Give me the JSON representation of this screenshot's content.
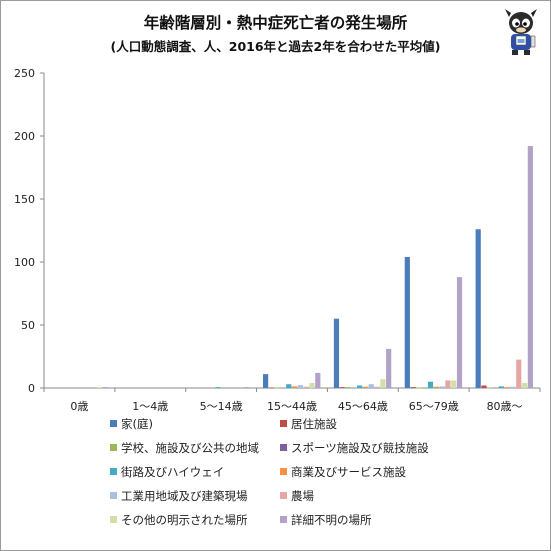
{
  "chart_data": {
    "type": "bar",
    "title": "年齢階層別・熱中症死亡者の発生場所",
    "subtitle": "(人口動態調査、人、2016年と過去2年を合わせた平均値)",
    "categories": [
      "0歳",
      "1～4歳",
      "5～14歳",
      "15～44歳",
      "45～64歳",
      "65～79歳",
      "80歳～"
    ],
    "ylim": [
      0,
      250
    ],
    "yticks": [
      0,
      50,
      100,
      150,
      200,
      250
    ],
    "grid": false,
    "legend_position": "bottom",
    "series": [
      {
        "name": "家(庭)",
        "color": "#4a7ebb",
        "values": [
          0,
          0,
          0,
          11,
          55,
          104,
          126
        ]
      },
      {
        "name": "居住施設",
        "color": "#be4b48",
        "values": [
          0,
          0,
          0,
          0.3,
          0.7,
          0.7,
          2
        ]
      },
      {
        "name": "学校、施設及び公共の地域",
        "color": "#98b954",
        "values": [
          0,
          0,
          0,
          0.3,
          0.7,
          0.3,
          0.3
        ]
      },
      {
        "name": "スポーツ施設及び競技施設",
        "color": "#7d60a0",
        "values": [
          0,
          0,
          0,
          0,
          0,
          0,
          0
        ]
      },
      {
        "name": "街路及びハイウェイ",
        "color": "#46aac4",
        "values": [
          0,
          0,
          0.7,
          3,
          2,
          5,
          1.3
        ]
      },
      {
        "name": "商業及びサービス施設",
        "color": "#f69240",
        "values": [
          0,
          0,
          0,
          1.3,
          1,
          1,
          0.7
        ]
      },
      {
        "name": "工業用地域及び建築現場",
        "color": "#a7c0e0",
        "values": [
          0,
          0,
          0,
          2.3,
          3,
          1.3,
          1
        ]
      },
      {
        "name": "農場",
        "color": "#e6a6a5",
        "values": [
          0,
          0,
          0,
          1,
          1,
          6,
          22.5
        ]
      },
      {
        "name": "その他の明示された場所",
        "color": "#d2e0a8",
        "values": [
          0.7,
          0,
          0,
          4,
          7,
          6,
          4
        ]
      },
      {
        "name": "詳細不明の場所",
        "color": "#b2a2c8",
        "values": [
          0.7,
          0,
          0.7,
          12,
          31,
          88,
          192
        ]
      }
    ]
  }
}
